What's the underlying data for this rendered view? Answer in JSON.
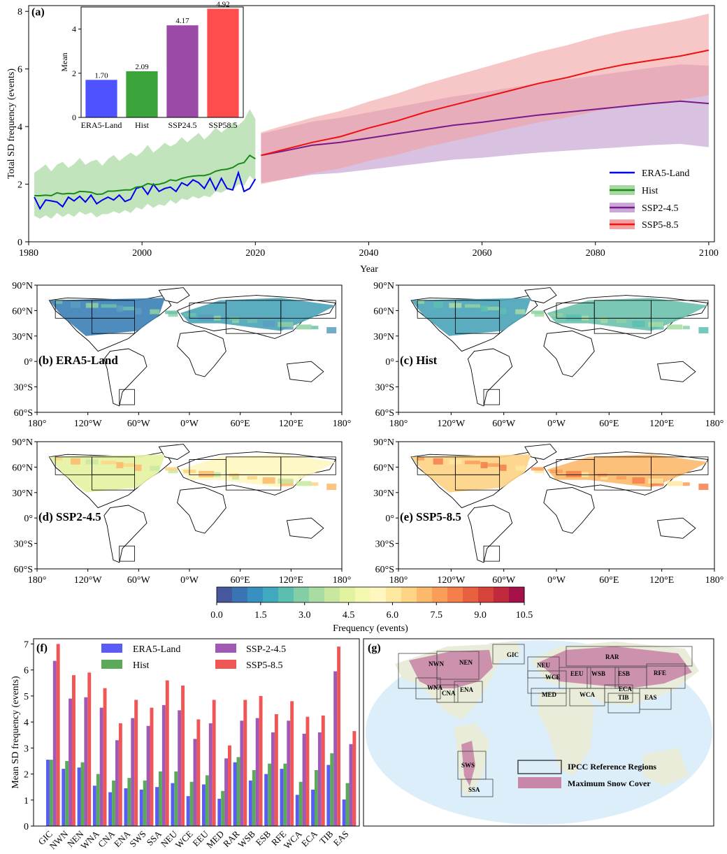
{
  "panel_a": {
    "label": "(a)",
    "xlabel": "Year",
    "ylabel": "Total SD frequency (events)",
    "xlim": [
      1980,
      2101
    ],
    "ylim": [
      0,
      8.2
    ],
    "xticks": [
      "1980",
      "2000",
      "2020",
      "2040",
      "2060",
      "2080",
      "2100"
    ],
    "yticks": [
      "0",
      "2",
      "4",
      "6",
      "8"
    ],
    "legend": [
      "ERA5-Land",
      "Hist",
      "SSP2-4.5",
      "SSP5-8.5"
    ],
    "colors": {
      "era5": "#0000ee",
      "hist": "#1a8a1a",
      "ssp245": "#7a1a8a",
      "ssp585": "#ee1111",
      "hist_band": "#a8d8a0",
      "ssp245_band": "#c9a7d6",
      "ssp585_band": "#f2a0a0"
    }
  },
  "inset": {
    "ylabel": "Mean",
    "ylim": [
      0,
      5
    ],
    "yticks": [
      "0",
      "2",
      "4"
    ],
    "categories": [
      "ERA5-Land",
      "Hist",
      "SSP24.5",
      "SSP58.5"
    ],
    "values": [
      1.7,
      2.09,
      4.17,
      4.92
    ],
    "value_labels": [
      "1.70",
      "2.09",
      "4.17",
      "4.92"
    ],
    "colors": [
      "#4f53ff",
      "#3aa33a",
      "#9b4aa8",
      "#ff4d4d"
    ]
  },
  "maps": {
    "panels": [
      "(b) ERA5-Land",
      "(c) Hist",
      "(d) SSP2-4.5",
      "(e) SSP5-8.5"
    ],
    "lat_ticks": [
      "90°N",
      "60°N",
      "30°N",
      "0°",
      "30°S",
      "60°S"
    ],
    "lon_ticks": [
      "180°",
      "120°W",
      "60°W",
      "0°W",
      "60°E",
      "120°E",
      "180°"
    ]
  },
  "colorbar": {
    "label": "Frequency (events)",
    "ticks": [
      "0.0",
      "1.5",
      "3.0",
      "4.5",
      "6.0",
      "7.5",
      "9.0",
      "10.5"
    ],
    "colors": [
      "#46579e",
      "#3b74b5",
      "#3790c0",
      "#41a9bf",
      "#5cbeb0",
      "#83cea5",
      "#a8dca3",
      "#c8e8a0",
      "#e3f2a0",
      "#f5f8b0",
      "#fef7c0",
      "#fee8a0",
      "#fdd384",
      "#fcb96b",
      "#f99d59",
      "#f47f4b",
      "#e8603f",
      "#d6433a",
      "#c02a3c",
      "#a5124a"
    ]
  },
  "panel_f": {
    "label": "(f)",
    "ylabel": "Mean SD frequency (events)",
    "ylim": [
      0,
      7.2
    ],
    "yticks": [
      "0",
      "1",
      "2",
      "3",
      "4",
      "5",
      "6",
      "7"
    ],
    "legend": [
      "ERA5-Land",
      "Hist",
      "SSP-2-4.5",
      "SSP5-8.5"
    ],
    "colors": [
      "#5a5cf5",
      "#5aaa5a",
      "#a05ab5",
      "#f05656"
    ]
  },
  "panel_g": {
    "label": "(g)",
    "legend": [
      "IPCC Reference Regions",
      "Maximum Snow Cover"
    ],
    "regions": [
      {
        "name": "NWN"
      },
      {
        "name": "NEN"
      },
      {
        "name": "GIC"
      },
      {
        "name": "WNA"
      },
      {
        "name": "CNA"
      },
      {
        "name": "ENA"
      },
      {
        "name": "NEU"
      },
      {
        "name": "RAR"
      },
      {
        "name": "WCE"
      },
      {
        "name": "EEU"
      },
      {
        "name": "WSB"
      },
      {
        "name": "ESB"
      },
      {
        "name": "RFE"
      },
      {
        "name": "MED"
      },
      {
        "name": "WCA"
      },
      {
        "name": "ECA"
      },
      {
        "name": "TIB"
      },
      {
        "name": "EAS"
      },
      {
        "name": "SWS"
      },
      {
        "name": "SSA"
      }
    ]
  },
  "chart_data": [
    {
      "type": "line",
      "title": "(a)",
      "xlabel": "Year",
      "ylabel": "Total SD frequency (events)",
      "xlim": [
        1980,
        2101
      ],
      "ylim": [
        0,
        8.2
      ],
      "series": [
        {
          "name": "ERA5-Land",
          "x": [
            1981,
            1982,
            1983,
            1984,
            1985,
            1986,
            1987,
            1988,
            1989,
            1990,
            1991,
            1992,
            1993,
            1994,
            1995,
            1996,
            1997,
            1998,
            1999,
            2000,
            2001,
            2002,
            2003,
            2004,
            2005,
            2006,
            2007,
            2008,
            2009,
            2010,
            2011,
            2012,
            2013,
            2014,
            2015,
            2016,
            2017,
            2018,
            2019,
            2020
          ],
          "values": [
            1.55,
            1.15,
            1.45,
            1.42,
            1.38,
            1.22,
            1.55,
            1.42,
            1.58,
            1.38,
            1.62,
            1.32,
            1.45,
            1.55,
            1.45,
            1.62,
            1.4,
            1.48,
            1.85,
            1.92,
            1.65,
            2.0,
            1.75,
            1.85,
            1.9,
            1.75,
            2.05,
            1.95,
            2.15,
            2.05,
            1.85,
            2.2,
            1.8,
            2.2,
            1.85,
            1.8,
            2.4,
            1.75,
            1.85,
            2.18
          ]
        },
        {
          "name": "Hist",
          "x": [
            1981,
            1982,
            1983,
            1984,
            1985,
            1986,
            1987,
            1988,
            1989,
            1990,
            1991,
            1992,
            1993,
            1994,
            1995,
            1996,
            1997,
            1998,
            1999,
            2000,
            2001,
            2002,
            2003,
            2004,
            2005,
            2006,
            2007,
            2008,
            2009,
            2010,
            2011,
            2012,
            2013,
            2014,
            2015,
            2016,
            2017,
            2018,
            2019,
            2020
          ],
          "values": [
            1.6,
            1.6,
            1.62,
            1.6,
            1.7,
            1.66,
            1.68,
            1.67,
            1.75,
            1.74,
            1.72,
            1.65,
            1.66,
            1.76,
            1.76,
            1.78,
            1.8,
            1.8,
            1.9,
            1.92,
            2.02,
            1.98,
            2.0,
            2.05,
            2.15,
            2.12,
            2.2,
            2.25,
            2.28,
            2.3,
            2.3,
            2.35,
            2.45,
            2.5,
            2.52,
            2.58,
            2.7,
            2.75,
            3.0,
            2.88
          ]
        },
        {
          "name": "SSP2-4.5",
          "x": [
            2021,
            2025,
            2030,
            2035,
            2040,
            2045,
            2050,
            2055,
            2060,
            2065,
            2070,
            2075,
            2080,
            2085,
            2090,
            2095,
            2100
          ],
          "values": [
            3.0,
            3.15,
            3.35,
            3.45,
            3.6,
            3.75,
            3.9,
            4.05,
            4.15,
            4.28,
            4.4,
            4.5,
            4.6,
            4.7,
            4.8,
            4.88,
            4.8
          ]
        },
        {
          "name": "SSP5-8.5",
          "x": [
            2021,
            2025,
            2030,
            2035,
            2040,
            2045,
            2050,
            2055,
            2060,
            2065,
            2070,
            2075,
            2080,
            2085,
            2090,
            2095,
            2100
          ],
          "values": [
            3.0,
            3.2,
            3.45,
            3.65,
            3.95,
            4.2,
            4.5,
            4.75,
            5.0,
            5.25,
            5.5,
            5.7,
            5.95,
            6.15,
            6.3,
            6.45,
            6.65
          ]
        }
      ]
    },
    {
      "type": "bar",
      "title": "",
      "ylabel": "Mean",
      "categories": [
        "ERA5-Land",
        "Hist",
        "SSP24.5",
        "SSP58.5"
      ],
      "values": [
        1.7,
        2.09,
        4.17,
        4.92
      ],
      "ylim": [
        0,
        5
      ]
    },
    {
      "type": "bar",
      "title": "(f)",
      "ylabel": "Mean SD frequency (events)",
      "ylim": [
        0,
        7.2
      ],
      "categories": [
        "GIC",
        "NWN",
        "NEN",
        "WNA",
        "CNA",
        "ENA",
        "SWS",
        "SSA",
        "NEU",
        "WCE",
        "EEU",
        "MED",
        "RAR",
        "WSB",
        "ESB",
        "RFE",
        "WCA",
        "ECA",
        "TIB",
        "EAS"
      ],
      "series": [
        {
          "name": "ERA5-Land",
          "values": [
            2.55,
            2.2,
            2.25,
            1.55,
            1.3,
            1.45,
            1.4,
            1.5,
            1.65,
            1.15,
            1.6,
            1.05,
            2.45,
            1.75,
            2.0,
            2.2,
            1.2,
            1.4,
            2.35,
            1.02
          ]
        },
        {
          "name": "Hist",
          "values": [
            2.55,
            2.5,
            2.45,
            2.0,
            1.75,
            1.85,
            1.75,
            2.1,
            2.1,
            1.7,
            1.95,
            1.35,
            2.65,
            2.15,
            2.4,
            2.4,
            1.7,
            2.15,
            2.8,
            1.65
          ]
        },
        {
          "name": "SSP-2-4.5",
          "values": [
            6.35,
            4.9,
            4.95,
            4.55,
            3.3,
            4.15,
            3.85,
            4.65,
            4.45,
            3.35,
            3.95,
            2.6,
            4.05,
            4.15,
            3.6,
            4.05,
            3.55,
            3.6,
            5.95,
            3.15
          ]
        },
        {
          "name": "SSP5-8.5",
          "values": [
            7.0,
            5.8,
            5.9,
            5.3,
            3.95,
            4.85,
            4.55,
            5.6,
            5.4,
            4.1,
            4.85,
            3.1,
            4.85,
            5.0,
            4.3,
            4.8,
            4.2,
            4.25,
            6.9,
            3.65
          ]
        }
      ]
    }
  ]
}
